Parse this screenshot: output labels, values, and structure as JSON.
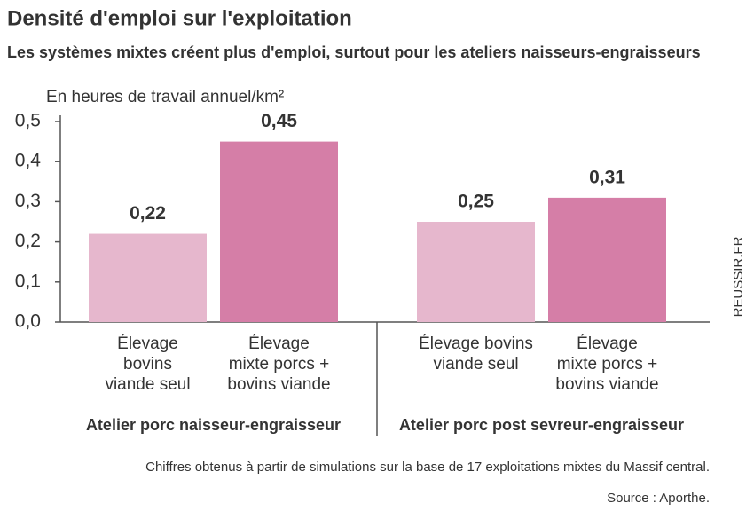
{
  "chart_data": {
    "type": "bar",
    "title": "Densité d'emploi sur l'exploitation",
    "subtitle": "Les systèmes mixtes créent plus d'emploi, surtout pour les ateliers naisseurs-engraisseurs",
    "y_label": "En heures de travail annuel/km²",
    "categories": [
      "Atelier porc naisseur-engraisseur",
      "Atelier porc post sevreur-engraisseur"
    ],
    "bar_labels": [
      [
        [
          "Élevage",
          "bovins",
          "viande seul"
        ],
        [
          "Élevage",
          "mixte porcs +",
          "bovins viande"
        ]
      ],
      [
        [
          "Élevage bovins",
          "viande seul"
        ],
        [
          "Élevage",
          "mixte porcs +",
          "bovins viande"
        ]
      ]
    ],
    "series": [
      {
        "color": "#e6b7cd",
        "values": [
          0.22,
          0.25
        ],
        "value_labels": [
          "0,22",
          "0,25"
        ]
      },
      {
        "color": "#d57ea7",
        "values": [
          0.45,
          0.31
        ],
        "value_labels": [
          "0,45",
          "0,31"
        ]
      }
    ],
    "ylim": [
      0,
      0.5
    ],
    "yticks": [
      {
        "value": 0,
        "label": "0,0"
      },
      {
        "value": 0.1,
        "label": "0,1"
      },
      {
        "value": 0.2,
        "label": "0,2"
      },
      {
        "value": 0.3,
        "label": "0,3"
      },
      {
        "value": 0.4,
        "label": "0,4"
      },
      {
        "value": 0.5,
        "label": "0,5"
      }
    ],
    "note": "Chiffres obtenus à partir de simulations sur la base de 17 exploitations mixtes du Massif central.",
    "source": "Source : Aporthe.",
    "watermark": "REUSSIR.FR"
  }
}
